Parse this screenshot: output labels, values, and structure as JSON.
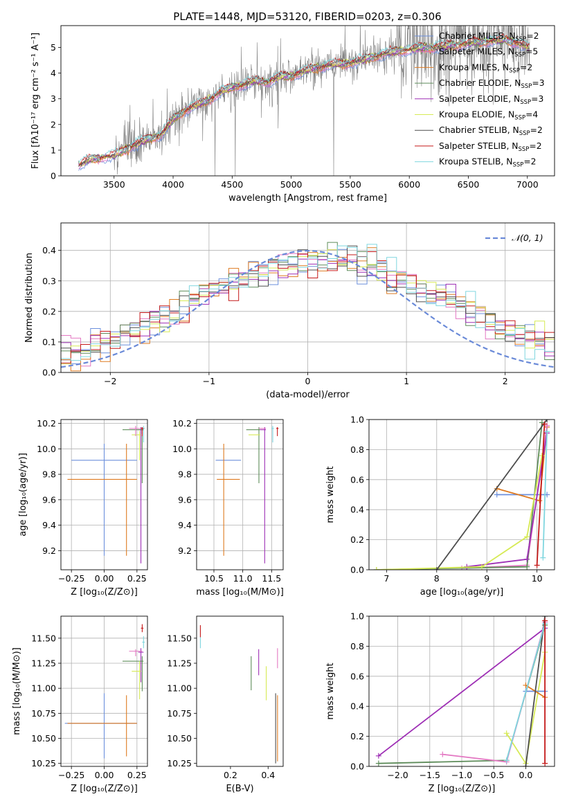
{
  "figure": {
    "title": "PLATE=1448, MJD=53120, FIBERID=0203, z=0.306"
  },
  "colors": {
    "data": "#808080",
    "chabrier_miles": "#6b8fdc",
    "salpeter_miles": "#e377c2",
    "kroupa_miles": "#de7a20",
    "chabrier_elodie": "#5e8c5a",
    "salpeter_elodie": "#9e2fb5",
    "kroupa_elodie": "#d6ea55",
    "chabrier_stelib": "#4d4d4d",
    "salpeter_stelib": "#c41818",
    "kroupa_stelib": "#7fd6df",
    "normal": "#6a8ad8",
    "grid": "#b0b0b0"
  },
  "chart_data": [
    {
      "id": "spectrum",
      "type": "line",
      "xlabel": "wavelength [Angstrom, rest frame]",
      "ylabel": "Flux [fλ10⁻¹⁷ erg cm⁻² s⁻¹ A⁻¹]",
      "xlim": [
        3050,
        7230
      ],
      "ylim": [
        0,
        5.85
      ],
      "xticks": [
        "3500",
        "4000",
        "4500",
        "5000",
        "5500",
        "6000",
        "6500",
        "7000"
      ],
      "yticks": [
        "0",
        "1",
        "2",
        "3",
        "4",
        "5"
      ],
      "grid": false,
      "legend_position": "top-right",
      "continuum": {
        "x": [
          3200,
          3300,
          3400,
          3500,
          3600,
          3700,
          3800,
          3900,
          4000,
          4100,
          4200,
          4300,
          4400,
          4500,
          4600,
          4700,
          4800,
          4900,
          5000,
          5100,
          5200,
          5300,
          5400,
          5500,
          5600,
          5700,
          5800,
          5900,
          6000,
          6100,
          6200,
          6300,
          6400,
          6500,
          6600,
          6700,
          6800,
          6900,
          7000
        ],
        "y": [
          0.4,
          0.65,
          0.72,
          0.78,
          1.05,
          1.25,
          1.45,
          1.6,
          2.2,
          2.55,
          2.75,
          2.95,
          3.25,
          3.45,
          3.55,
          3.7,
          3.65,
          3.85,
          3.9,
          4.05,
          4.2,
          4.3,
          4.35,
          4.4,
          4.5,
          4.65,
          4.75,
          4.85,
          4.9,
          5.0,
          5.0,
          5.05,
          5.1,
          5.15,
          5.2,
          5.25,
          5.3,
          5.2,
          5.0
        ]
      },
      "legend": [
        {
          "label": "Chabrier MILES, N",
          "sub": "SSP",
          "suffix": "=2",
          "color_key": "chabrier_miles"
        },
        {
          "label": "Salpeter MILES, N",
          "sub": "SSP",
          "suffix": "=5",
          "color_key": "salpeter_miles"
        },
        {
          "label": "Kroupa MILES, N",
          "sub": "SSP",
          "suffix": "=2",
          "color_key": "kroupa_miles"
        },
        {
          "label": "Chabrier ELODIE, N",
          "sub": "SSP",
          "suffix": "=3",
          "color_key": "chabrier_elodie"
        },
        {
          "label": "Salpeter ELODIE, N",
          "sub": "SSP",
          "suffix": "=3",
          "color_key": "salpeter_elodie"
        },
        {
          "label": "Kroupa ELODIE, N",
          "sub": "SSP",
          "suffix": "=4",
          "color_key": "kroupa_elodie"
        },
        {
          "label": "Chabrier STELIB, N",
          "sub": "SSP",
          "suffix": "=2",
          "color_key": "chabrier_stelib"
        },
        {
          "label": "Salpeter STELIB, N",
          "sub": "SSP",
          "suffix": "=2",
          "color_key": "salpeter_stelib"
        },
        {
          "label": "Kroupa STELIB, N",
          "sub": "SSP",
          "suffix": "=2",
          "color_key": "kroupa_stelib"
        }
      ]
    },
    {
      "id": "residuals",
      "type": "line",
      "xlabel": "(data-model)/error",
      "ylabel": "Normed distribution",
      "xlim": [
        -2.5,
        2.5
      ],
      "ylim": [
        0,
        0.49
      ],
      "xticks": [
        "−2",
        "−1",
        "0",
        "1",
        "2"
      ],
      "yticks": [
        "0.0",
        "0.1",
        "0.2",
        "0.3",
        "0.4"
      ],
      "grid": true,
      "legend_position": "top-right",
      "legend_label": "𝒩(0, 1)",
      "normal": {
        "mean": 0,
        "sigma": 1
      },
      "histogram_bins": [
        -2.5,
        2.5,
        0.1
      ]
    },
    {
      "id": "age_vs_Z",
      "type": "scatter",
      "xlabel": "Z [log₁₀(Z/Z⊙)]",
      "ylabel": "age  [log₁₀(age/yr)]",
      "xlim": [
        -0.33,
        0.33
      ],
      "ylim": [
        9.05,
        10.23
      ],
      "xticks": [
        "−0.25",
        "0.00",
        "0.25"
      ],
      "yticks": [
        "9.2",
        "9.4",
        "9.6",
        "9.8",
        "10.0",
        "10.2"
      ],
      "grid": true,
      "points": [
        {
          "color_key": "chabrier_miles",
          "x": 0.0,
          "xerr": [
            0.25,
            0.25
          ],
          "y": 9.91,
          "yerr": [
            0.75,
            0.13
          ]
        },
        {
          "color_key": "kroupa_miles",
          "x": 0.17,
          "xerr": [
            0.45,
            0.08
          ],
          "y": 9.76,
          "yerr": [
            0.6,
            0.28
          ]
        },
        {
          "color_key": "salpeter_elodie",
          "x": 0.28,
          "xerr": [
            0.02,
            0.02
          ],
          "y": 10.15,
          "yerr": [
            1.05,
            0.02
          ]
        },
        {
          "color_key": "chabrier_elodie",
          "x": 0.29,
          "xerr": [
            0.15,
            0.01
          ],
          "y": 10.15,
          "yerr": [
            0.42,
            0.02
          ]
        },
        {
          "color_key": "kroupa_elodie",
          "x": 0.27,
          "xerr": [
            0.06,
            0.01
          ],
          "y": 10.11,
          "yerr": [
            0.2,
            0.03
          ]
        },
        {
          "color_key": "salpeter_miles",
          "x": 0.24,
          "xerr": [
            0.05,
            0.05
          ],
          "y": 10.16,
          "yerr": [
            0.06,
            0.02
          ]
        },
        {
          "color_key": "kroupa_stelib",
          "x": 0.3,
          "xerr": [
            0.01,
            0.01
          ],
          "y": 10.16,
          "yerr": [
            0.11,
            0.02
          ]
        },
        {
          "color_key": "salpeter_stelib",
          "x": 0.29,
          "xerr": [
            0.01,
            0.01
          ],
          "y": 10.16,
          "yerr": [
            0.06,
            0.01
          ]
        }
      ]
    },
    {
      "id": "age_vs_mass",
      "type": "scatter",
      "xlabel": "mass [log₁₀(M/M⊙)]",
      "ylabel": "",
      "xlim": [
        10.2,
        11.7
      ],
      "ylim": [
        9.05,
        10.23
      ],
      "xticks": [
        "10.5",
        "11.0",
        "11.5"
      ],
      "yticks": [
        "9.2",
        "9.4",
        "9.6",
        "9.8",
        "10.0",
        "10.2"
      ],
      "grid": true,
      "points": [
        {
          "color_key": "chabrier_miles",
          "x": 10.8,
          "xerr": [
            0.27,
            0.17
          ],
          "y": 9.91,
          "yerr": [
            0.0,
            0.0
          ]
        },
        {
          "color_key": "kroupa_miles",
          "x": 10.67,
          "xerr": [
            0.12,
            0.28
          ],
          "y": 9.76,
          "yerr": [
            0.6,
            0.28
          ]
        },
        {
          "color_key": "salpeter_elodie",
          "x": 11.38,
          "xerr": [
            0.08,
            0.02
          ],
          "y": 10.15,
          "yerr": [
            1.05,
            0.02
          ]
        },
        {
          "color_key": "chabrier_elodie",
          "x": 11.28,
          "xerr": [
            0.22,
            0.02
          ],
          "y": 10.15,
          "yerr": [
            0.42,
            0.02
          ]
        },
        {
          "color_key": "kroupa_elodie",
          "x": 11.25,
          "xerr": [
            0.15,
            0.05
          ],
          "y": 10.11,
          "yerr": [
            0.0,
            0.0
          ]
        },
        {
          "color_key": "salpeter_miles",
          "x": 11.38,
          "xerr": [
            0.1,
            0.02
          ],
          "y": 10.16,
          "yerr": [
            0.0,
            0.0
          ]
        },
        {
          "color_key": "kroupa_stelib",
          "x": 11.52,
          "xerr": [
            0.02,
            0.02
          ],
          "y": 10.16,
          "yerr": [
            0.11,
            0.02
          ]
        },
        {
          "color_key": "salpeter_stelib",
          "x": 11.6,
          "xerr": [
            0.02,
            0.02
          ],
          "y": 10.16,
          "yerr": [
            0.06,
            0.01
          ]
        }
      ]
    },
    {
      "id": "weight_vs_age",
      "type": "line",
      "xlabel": "age  [log₁₀(age/yr)]",
      "ylabel": "mass weight",
      "xlim": [
        6.65,
        10.35
      ],
      "ylim": [
        0,
        1.0
      ],
      "xticks": [
        "7",
        "8",
        "9",
        "10"
      ],
      "yticks": [
        "0.0",
        "0.2",
        "0.4",
        "0.6",
        "0.8",
        "1.0"
      ],
      "grid": true,
      "series": [
        {
          "color_key": "chabrier_miles",
          "x": [
            9.2,
            10.2
          ],
          "y": [
            0.5,
            0.5
          ]
        },
        {
          "color_key": "kroupa_miles",
          "x": [
            9.2,
            10.05,
            10.2
          ],
          "y": [
            0.54,
            0.46,
            0.95
          ]
        },
        {
          "color_key": "salpeter_miles",
          "x": [
            8.5,
            9.8,
            10.2
          ],
          "y": [
            0.01,
            0.03,
            0.96
          ]
        },
        {
          "color_key": "chabrier_elodie",
          "x": [
            6.8,
            9.8,
            10.1
          ],
          "y": [
            0.0,
            0.02,
            0.98
          ]
        },
        {
          "color_key": "salpeter_elodie",
          "x": [
            8.6,
            9.8,
            10.2
          ],
          "y": [
            0.02,
            0.07,
            0.91
          ]
        },
        {
          "color_key": "kroupa_elodie",
          "x": [
            6.8,
            8.9,
            9.8,
            10.1
          ],
          "y": [
            0.0,
            0.02,
            0.22,
            0.76
          ]
        },
        {
          "color_key": "chabrier_stelib",
          "x": [
            8.0,
            10.2
          ],
          "y": [
            0.0,
            1.0
          ]
        },
        {
          "color_key": "salpeter_stelib",
          "x": [
            10.0,
            10.15
          ],
          "y": [
            0.03,
            0.97
          ]
        },
        {
          "color_key": "kroupa_stelib",
          "x": [
            10.12,
            10.2
          ],
          "y": [
            0.08,
            0.92
          ]
        }
      ]
    },
    {
      "id": "mass_vs_Z",
      "type": "scatter",
      "xlabel": "Z [log₁₀(Z/Z⊙)]",
      "ylabel": "mass [log₁₀(M/M⊙)]",
      "xlim": [
        -0.33,
        0.33
      ],
      "ylim": [
        10.22,
        11.72
      ],
      "xticks": [
        "−0.25",
        "0.00",
        "0.25"
      ],
      "yticks": [
        "10.25",
        "10.50",
        "10.75",
        "11.00",
        "11.25",
        "11.50"
      ],
      "grid": true,
      "points": [
        {
          "color_key": "chabrier_miles",
          "x": 0.0,
          "xerr": [
            0.3,
            0.25
          ],
          "y": 10.65,
          "yerr": [
            0.35,
            0.3
          ]
        },
        {
          "color_key": "kroupa_miles",
          "x": 0.17,
          "xerr": [
            0.45,
            0.08
          ],
          "y": 10.65,
          "yerr": [
            0.33,
            0.28
          ]
        },
        {
          "color_key": "salpeter_elodie",
          "x": 0.28,
          "xerr": [
            0.02,
            0.02
          ],
          "y": 11.36,
          "yerr": [
            0.3,
            0.04
          ]
        },
        {
          "color_key": "chabrier_elodie",
          "x": 0.29,
          "xerr": [
            0.15,
            0.01
          ],
          "y": 11.27,
          "yerr": [
            0.3,
            0.05
          ]
        },
        {
          "color_key": "kroupa_elodie",
          "x": 0.27,
          "xerr": [
            0.06,
            0.01
          ],
          "y": 11.17,
          "yerr": [
            0.28,
            0.1
          ]
        },
        {
          "color_key": "salpeter_miles",
          "x": 0.24,
          "xerr": [
            0.05,
            0.05
          ],
          "y": 11.37,
          "yerr": [
            0.05,
            0.02
          ]
        },
        {
          "color_key": "kroupa_stelib",
          "x": 0.3,
          "xerr": [
            0.01,
            0.01
          ],
          "y": 11.46,
          "yerr": [
            0.06,
            0.06
          ]
        },
        {
          "color_key": "salpeter_stelib",
          "x": 0.29,
          "xerr": [
            0.01,
            0.01
          ],
          "y": 11.6,
          "yerr": [
            0.04,
            0.04
          ]
        }
      ]
    },
    {
      "id": "mass_vs_ebv",
      "type": "scatter",
      "xlabel": "E(B-V)",
      "ylabel": "",
      "xlim": [
        0.02,
        0.48
      ],
      "ylim": [
        10.22,
        11.72
      ],
      "xticks": [
        "0.2",
        "0.4"
      ],
      "yticks": [
        "10.25",
        "10.50",
        "10.75",
        "11.00",
        "11.25",
        "11.50"
      ],
      "grid": false,
      "points": [
        {
          "color_key": "kroupa_stelib",
          "x": 0.04,
          "xerr": [
            0.0,
            0.0
          ],
          "y": 11.46,
          "yerr": [
            0.06,
            0.06
          ]
        },
        {
          "color_key": "salpeter_stelib",
          "x": 0.04,
          "xerr": [
            0.0,
            0.0
          ],
          "y": 11.57,
          "yerr": [
            0.06,
            0.06
          ]
        },
        {
          "color_key": "chabrier_elodie",
          "x": 0.31,
          "xerr": [
            0.0,
            0.0
          ],
          "y": 11.15,
          "yerr": [
            0.17,
            0.17
          ]
        },
        {
          "color_key": "salpeter_elodie",
          "x": 0.35,
          "xerr": [
            0.0,
            0.0
          ],
          "y": 11.26,
          "yerr": [
            0.13,
            0.13
          ]
        },
        {
          "color_key": "kroupa_elodie",
          "x": 0.39,
          "xerr": [
            0.0,
            0.0
          ],
          "y": 11.05,
          "yerr": [
            0.17,
            0.17
          ]
        },
        {
          "color_key": "salpeter_miles",
          "x": 0.45,
          "xerr": [
            0.0,
            0.0
          ],
          "y": 11.3,
          "yerr": [
            0.1,
            0.1
          ]
        },
        {
          "color_key": "chabrier_stelib",
          "x": 0.44,
          "xerr": [
            0.0,
            0.0
          ],
          "y": 10.6,
          "yerr": [
            0.35,
            0.35
          ]
        },
        {
          "color_key": "kroupa_miles",
          "x": 0.45,
          "xerr": [
            0.0,
            0.0
          ],
          "y": 10.6,
          "yerr": [
            0.33,
            0.33
          ]
        }
      ]
    },
    {
      "id": "weight_vs_Z",
      "type": "line",
      "xlabel": "Z [log₁₀(Z/Z⊙)]",
      "ylabel": "mass weight",
      "xlim": [
        -2.45,
        0.45
      ],
      "ylim": [
        0,
        1.0
      ],
      "xticks": [
        "−2.0",
        "−1.5",
        "−1.0",
        "−0.5",
        "0.0"
      ],
      "yticks": [
        "0.0",
        "0.2",
        "0.4",
        "0.6",
        "0.8",
        "1.0"
      ],
      "grid": true,
      "series": [
        {
          "color_key": "salpeter_elodie",
          "x": [
            -2.3,
            0.3
          ],
          "y": [
            0.07,
            0.92
          ]
        },
        {
          "color_key": "chabrier_elodie",
          "x": [
            -2.3,
            -0.3,
            0.3
          ],
          "y": [
            0.02,
            0.04,
            0.94
          ]
        },
        {
          "color_key": "salpeter_miles",
          "x": [
            -1.3,
            -0.3,
            0.3
          ],
          "y": [
            0.08,
            0.03,
            0.96
          ]
        },
        {
          "color_key": "kroupa_elodie",
          "x": [
            -0.3,
            0.0,
            0.3
          ],
          "y": [
            0.22,
            0.02,
            0.76
          ]
        },
        {
          "color_key": "chabrier_miles",
          "x": [
            0.0,
            0.3
          ],
          "y": [
            0.5,
            0.5
          ]
        },
        {
          "color_key": "kroupa_miles",
          "x": [
            0.0,
            0.3
          ],
          "y": [
            0.54,
            0.46
          ]
        },
        {
          "color_key": "chabrier_stelib",
          "x": [
            0.0,
            0.3
          ],
          "y": [
            0.0,
            1.0
          ]
        },
        {
          "color_key": "kroupa_stelib",
          "x": [
            -0.3,
            0.3
          ],
          "y": [
            0.04,
            0.95
          ]
        },
        {
          "color_key": "salpeter_stelib",
          "x": [
            0.3,
            0.3
          ],
          "y": [
            0.02,
            0.97
          ]
        }
      ]
    }
  ]
}
